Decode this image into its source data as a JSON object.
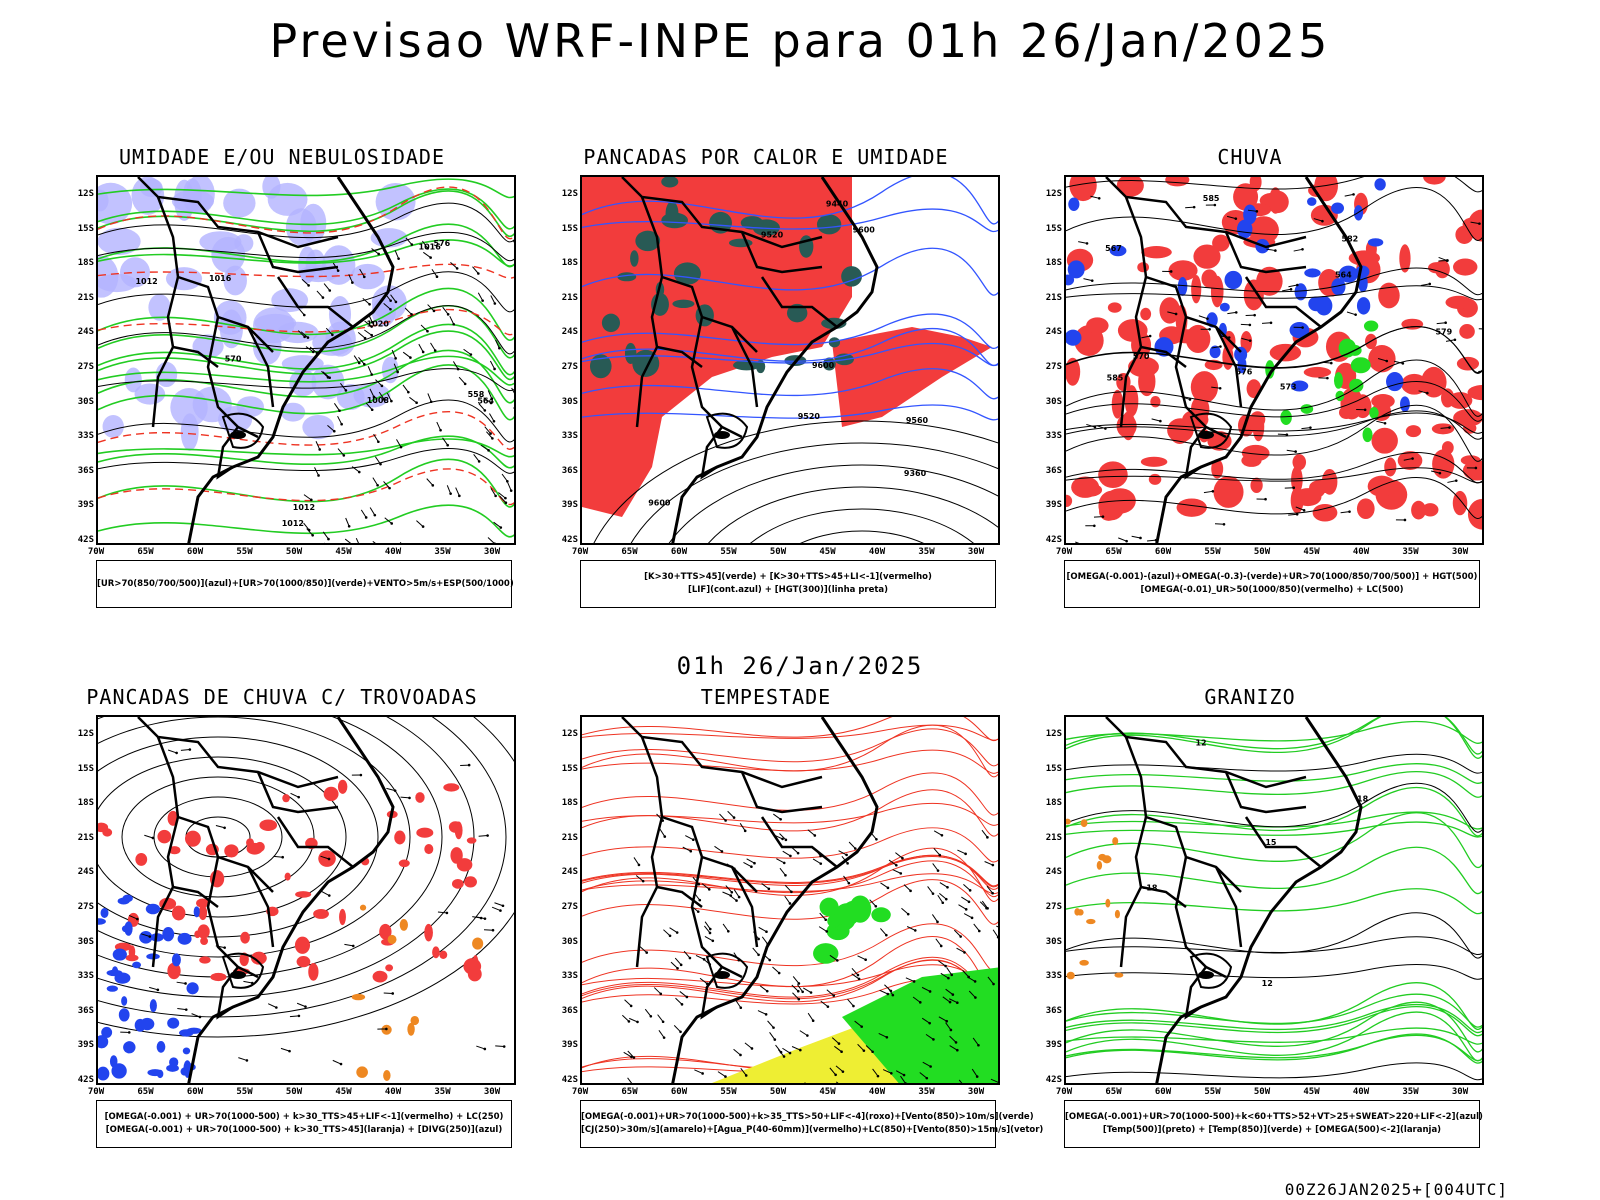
{
  "title": "Previsao WRF-INPE  para 01h 26/Jan/2025",
  "mid_title": "01h 26/Jan/2025",
  "footer": "00Z26JAN2025+[004UTC]",
  "lat_labels": [
    "12S",
    "15S",
    "18S",
    "21S",
    "24S",
    "27S",
    "30S",
    "33S",
    "36S",
    "39S",
    "42S"
  ],
  "lon_labels": [
    "70W",
    "65W",
    "60W",
    "55W",
    "50W",
    "45W",
    "40W",
    "35W",
    "30W"
  ],
  "colors": {
    "humidity_blue": "#b3b3ff",
    "humidity_green": "#22cc22",
    "red_fill": "#f23c3c",
    "dark_green": "#285a55",
    "lif_blue": "#3355ff",
    "bright_green": "#22dd22",
    "blue_fill": "#2244ee",
    "orange_fill": "#ee8822",
    "yellow_fill": "#eeee33",
    "contour_red": "#ee3322",
    "border_black": "#000000"
  },
  "panels": [
    {
      "title": "UMIDADE E/OU NEBULOSIDADE",
      "legend": [
        "[UR>70(850/700/500)](azul)+[UR>70(1000/850)](verde)+VENTO>5m/s+ESP(500/1000)"
      ],
      "contour_labels": [
        "1012",
        "1016",
        "1020",
        "1012",
        "1016",
        "1012",
        "1008",
        "570",
        "576",
        "564",
        "558"
      ]
    },
    {
      "title": "PANCADAS POR CALOR E UMIDADE",
      "legend": [
        "[K>30+TTS>45](verde) + [K>30+TTS>45+LI<-1](vermelho)",
        "[LIF](cont.azul) + [HGT(300)](linha preta)"
      ],
      "contour_labels": [
        "9600",
        "9560",
        "9600",
        "9520",
        "9520",
        "9440",
        "9360",
        "9600"
      ]
    },
    {
      "title": "CHUVA",
      "legend": [
        "[OMEGA(-0.001)-(azul)+OMEGA(-0.3)-(verde)+UR>70(1000/850/700/500)] + HGT(500)",
        "[OMEGA(-0.01)_UR>50(1000/850)(vermelho) + LC(500)"
      ],
      "contour_labels": [
        "585",
        "582",
        "579",
        "576",
        "573",
        "570",
        "567",
        "564",
        "585"
      ]
    },
    {
      "title": "PANCADAS DE CHUVA C/ TROVOADAS",
      "legend": [
        "[OMEGA(-0.001) + UR>70(1000-500) + k>30_TTS>45+LIF<-1](vermelho) + LC(250)",
        "[OMEGA(-0.001) + UR>70(1000-500) + k>30_TTS>45](laranja) + [DIVG(250)](azul)"
      ],
      "contour_labels": []
    },
    {
      "title": "TEMPESTADE",
      "legend": [
        "[OMEGA(-0.001)+UR>70(1000-500)+k>35_TTS>50+LIF<-4](roxo)+[Vento(850)>10m/s](verde)",
        "[CJ(250)>30m/s](amarelo)+[Agua_P(40-60mm)](vermelho)+LC(850)+[Vento(850)>15m/s](vetor)"
      ],
      "contour_labels": []
    },
    {
      "title": "GRANIZO",
      "legend": [
        "[OMEGA(-0.001)+UR>70(1000-500)+k<60+TTS>52+VT>25+SWEAT>220+LIF<-2](azul)",
        "[Temp(500)](preto) + [Temp(850)](verde) + [OMEGA(500)<-2](laranja)"
      ],
      "contour_labels": [
        "-18",
        "12",
        "15",
        "18",
        "12"
      ]
    }
  ]
}
